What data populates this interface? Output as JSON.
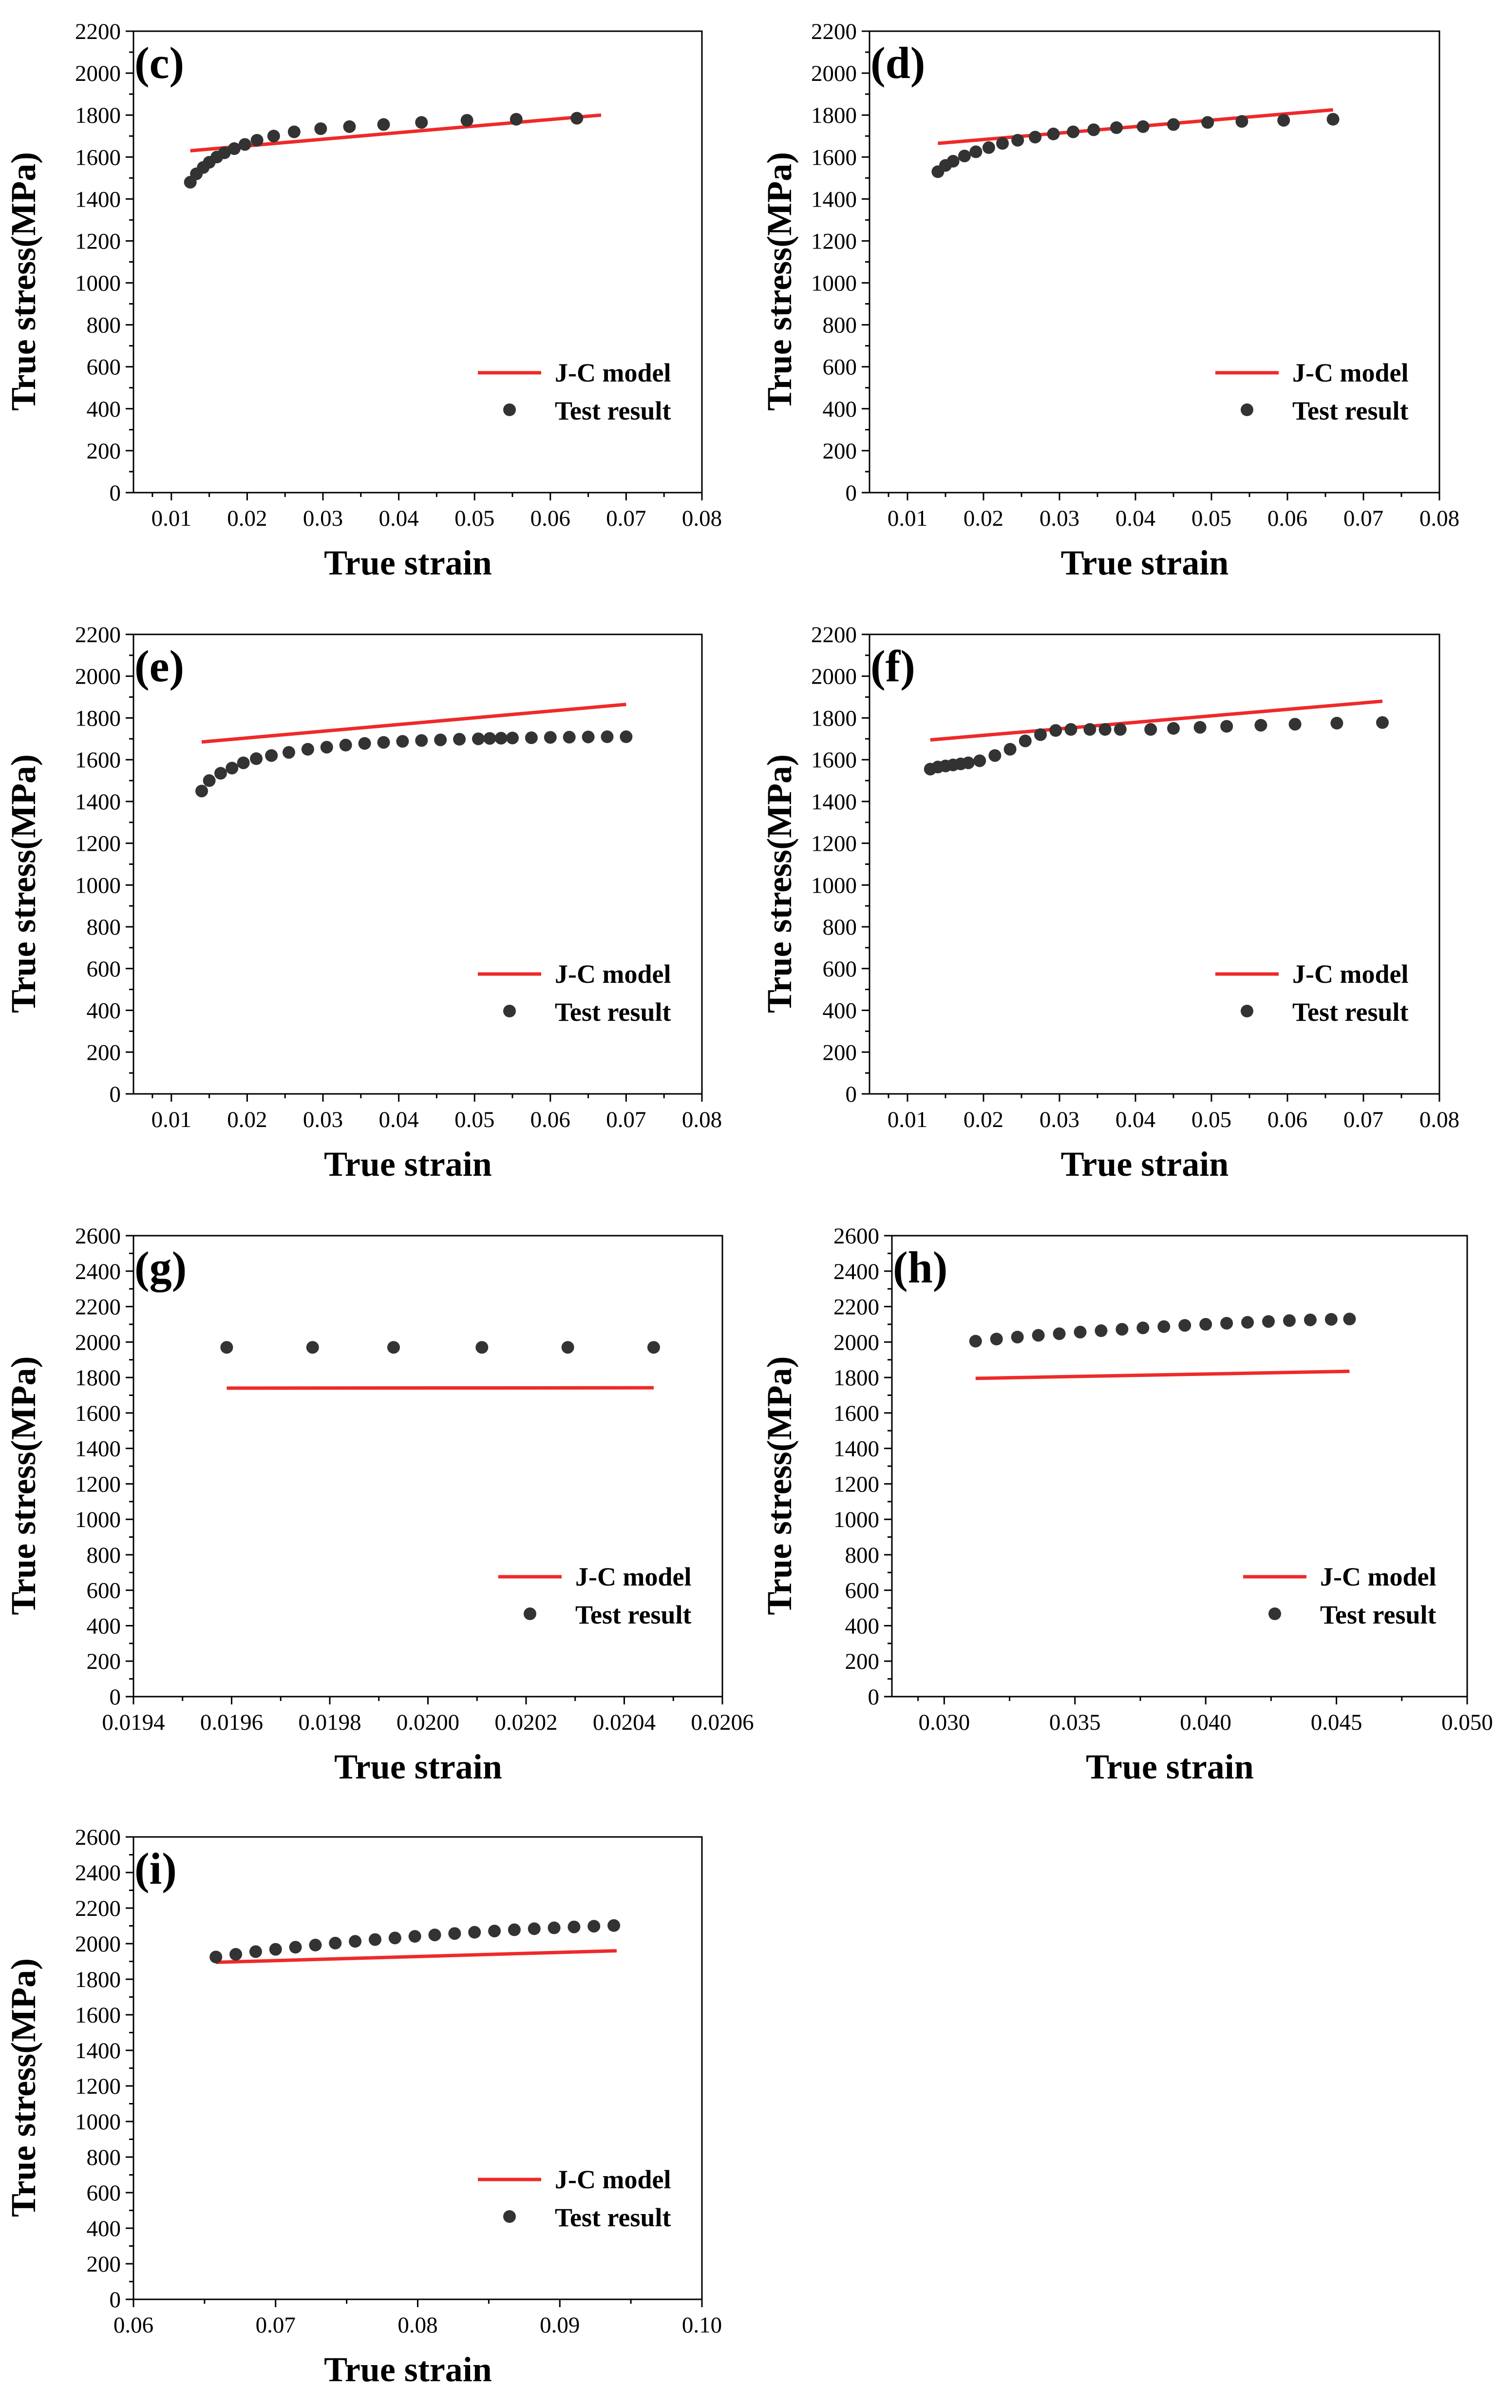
{
  "figure": {
    "legend_labels": {
      "model": "J-C model",
      "test": "Test result"
    },
    "colors": {
      "model_line": "#ee2a2a",
      "test_marker": "#333333",
      "axis": "#000000"
    }
  },
  "chart_data": [
    {
      "type": "line",
      "panel": "(c)",
      "xlabel": "True strain",
      "ylabel": "True stress(MPa)",
      "xlim": [
        0.005,
        0.08
      ],
      "ylim": [
        0,
        2200
      ],
      "x_ticks": [
        "0.01",
        "0.02",
        "0.03",
        "0.04",
        "0.05",
        "0.06",
        "0.07",
        "0.08"
      ],
      "x_tick_values": [
        0.01,
        0.02,
        0.03,
        0.04,
        0.05,
        0.06,
        0.07,
        0.08
      ],
      "y_ticks": [
        "0",
        "200",
        "400",
        "600",
        "800",
        "1000",
        "1200",
        "1400",
        "1600",
        "1800",
        "2000",
        "2200"
      ],
      "y_tick_values": [
        0,
        200,
        400,
        600,
        800,
        1000,
        1200,
        1400,
        1600,
        1800,
        2000,
        2200
      ],
      "legend_position": "lower-right",
      "series": [
        {
          "name": "J-C model",
          "kind": "line",
          "x": [
            0.0125,
            0.0667
          ],
          "y": [
            1630,
            1800
          ]
        },
        {
          "name": "Test result",
          "kind": "scatter",
          "x": [
            0.0125,
            0.0133,
            0.0142,
            0.015,
            0.016,
            0.017,
            0.0183,
            0.0197,
            0.0213,
            0.0235,
            0.0262,
            0.0297,
            0.0335,
            0.038,
            0.043,
            0.049,
            0.0555,
            0.0635
          ],
          "y": [
            1480,
            1520,
            1550,
            1575,
            1600,
            1620,
            1640,
            1660,
            1680,
            1700,
            1720,
            1735,
            1745,
            1755,
            1765,
            1775,
            1780,
            1785
          ]
        }
      ]
    },
    {
      "type": "line",
      "panel": "(d)",
      "xlabel": "True strain",
      "ylabel": "True stress(MPa)",
      "xlim": [
        0.005,
        0.08
      ],
      "ylim": [
        0,
        2200
      ],
      "x_ticks": [
        "0.01",
        "0.02",
        "0.03",
        "0.04",
        "0.05",
        "0.06",
        "0.07",
        "0.08"
      ],
      "x_tick_values": [
        0.01,
        0.02,
        0.03,
        0.04,
        0.05,
        0.06,
        0.07,
        0.08
      ],
      "y_ticks": [
        "0",
        "200",
        "400",
        "600",
        "800",
        "1000",
        "1200",
        "1400",
        "1600",
        "1800",
        "2000",
        "2200"
      ],
      "y_tick_values": [
        0,
        200,
        400,
        600,
        800,
        1000,
        1200,
        1400,
        1600,
        1800,
        2000,
        2200
      ],
      "legend_position": "lower-right",
      "series": [
        {
          "name": "J-C model",
          "kind": "line",
          "x": [
            0.014,
            0.066
          ],
          "y": [
            1665,
            1825
          ]
        },
        {
          "name": "Test result",
          "kind": "scatter",
          "x": [
            0.014,
            0.015,
            0.016,
            0.0175,
            0.019,
            0.0207,
            0.0225,
            0.0245,
            0.0268,
            0.0292,
            0.0318,
            0.0345,
            0.0375,
            0.041,
            0.045,
            0.0495,
            0.054,
            0.0595,
            0.066
          ],
          "y": [
            1530,
            1560,
            1580,
            1605,
            1625,
            1645,
            1665,
            1680,
            1695,
            1710,
            1720,
            1730,
            1740,
            1745,
            1755,
            1765,
            1770,
            1775,
            1780
          ]
        }
      ]
    },
    {
      "type": "line",
      "panel": "(e)",
      "xlabel": "True strain",
      "ylabel": "True stress(MPa)",
      "xlim": [
        0.005,
        0.08
      ],
      "ylim": [
        0,
        2200
      ],
      "x_ticks": [
        "0.01",
        "0.02",
        "0.03",
        "0.04",
        "0.05",
        "0.06",
        "0.07",
        "0.08"
      ],
      "x_tick_values": [
        0.01,
        0.02,
        0.03,
        0.04,
        0.05,
        0.06,
        0.07,
        0.08
      ],
      "y_ticks": [
        "0",
        "200",
        "400",
        "600",
        "800",
        "1000",
        "1200",
        "1400",
        "1600",
        "1800",
        "2000",
        "2200"
      ],
      "y_tick_values": [
        0,
        200,
        400,
        600,
        800,
        1000,
        1200,
        1400,
        1600,
        1800,
        2000,
        2200
      ],
      "legend_position": "lower-right",
      "series": [
        {
          "name": "J-C model",
          "kind": "line",
          "x": [
            0.014,
            0.07
          ],
          "y": [
            1685,
            1865
          ]
        },
        {
          "name": "Test result",
          "kind": "scatter",
          "x": [
            0.014,
            0.015,
            0.0165,
            0.018,
            0.0195,
            0.0212,
            0.0232,
            0.0255,
            0.028,
            0.0305,
            0.033,
            0.0355,
            0.038,
            0.0405,
            0.043,
            0.0455,
            0.048,
            0.0505,
            0.052,
            0.0535,
            0.055,
            0.0575,
            0.06,
            0.0625,
            0.065,
            0.0675,
            0.07
          ],
          "y": [
            1450,
            1500,
            1535,
            1560,
            1585,
            1605,
            1620,
            1635,
            1650,
            1660,
            1670,
            1678,
            1683,
            1688,
            1692,
            1695,
            1698,
            1700,
            1702,
            1703,
            1704,
            1705,
            1707,
            1708,
            1709,
            1710,
            1710
          ]
        }
      ]
    },
    {
      "type": "line",
      "panel": "(f)",
      "xlabel": "True strain",
      "ylabel": "True stress(MPa)",
      "xlim": [
        0.005,
        0.08
      ],
      "ylim": [
        0,
        2200
      ],
      "x_ticks": [
        "0.01",
        "0.02",
        "0.03",
        "0.04",
        "0.05",
        "0.06",
        "0.07",
        "0.08"
      ],
      "x_tick_values": [
        0.01,
        0.02,
        0.03,
        0.04,
        0.05,
        0.06,
        0.07,
        0.08
      ],
      "y_ticks": [
        "0",
        "200",
        "400",
        "600",
        "800",
        "1000",
        "1200",
        "1400",
        "1600",
        "1800",
        "2000",
        "2200"
      ],
      "y_tick_values": [
        0,
        200,
        400,
        600,
        800,
        1000,
        1200,
        1400,
        1600,
        1800,
        2000,
        2200
      ],
      "legend_position": "lower-right",
      "series": [
        {
          "name": "J-C model",
          "kind": "line",
          "x": [
            0.013,
            0.0725
          ],
          "y": [
            1695,
            1880
          ]
        },
        {
          "name": "Test result",
          "kind": "scatter",
          "x": [
            0.013,
            0.014,
            0.015,
            0.016,
            0.017,
            0.018,
            0.0195,
            0.0215,
            0.0235,
            0.0255,
            0.0275,
            0.0295,
            0.0315,
            0.034,
            0.036,
            0.038,
            0.042,
            0.045,
            0.0485,
            0.052,
            0.0565,
            0.061,
            0.0665,
            0.0725
          ],
          "y": [
            1555,
            1565,
            1570,
            1575,
            1580,
            1585,
            1595,
            1620,
            1650,
            1690,
            1720,
            1740,
            1745,
            1745,
            1745,
            1745,
            1745,
            1750,
            1755,
            1760,
            1765,
            1770,
            1775,
            1778
          ]
        }
      ]
    },
    {
      "type": "line",
      "panel": "(g)",
      "xlabel": "True strain",
      "ylabel": "True stress(MPa)",
      "xlim": [
        0.0194,
        0.0206
      ],
      "ylim": [
        0,
        2600
      ],
      "x_ticks": [
        "0.0194",
        "0.0196",
        "0.0198",
        "0.0200",
        "0.0202",
        "0.0204",
        "0.0206"
      ],
      "x_tick_values": [
        0.0194,
        0.0196,
        0.0198,
        0.02,
        0.0202,
        0.0204,
        0.0206
      ],
      "y_ticks": [
        "0",
        "200",
        "400",
        "600",
        "800",
        "1000",
        "1200",
        "1400",
        "1600",
        "1800",
        "2000",
        "2200",
        "2400",
        "2600"
      ],
      "y_tick_values": [
        0,
        200,
        400,
        600,
        800,
        1000,
        1200,
        1400,
        1600,
        1800,
        2000,
        2200,
        2400,
        2600
      ],
      "legend_position": "lower-right",
      "series": [
        {
          "name": "J-C model",
          "kind": "line",
          "x": [
            0.01959,
            0.02046
          ],
          "y": [
            1740,
            1742
          ]
        },
        {
          "name": "Test result",
          "kind": "scatter",
          "x": [
            0.01959,
            0.019765,
            0.01993,
            0.02011,
            0.020285,
            0.02046
          ],
          "y": [
            1970,
            1970,
            1970,
            1970,
            1970,
            1970
          ]
        }
      ]
    },
    {
      "type": "line",
      "panel": "(h)",
      "xlabel": "True strain",
      "ylabel": "True stress(MPa)",
      "xlim": [
        0.028,
        0.05
      ],
      "ylim": [
        0,
        2600
      ],
      "x_ticks": [
        "0.030",
        "0.035",
        "0.040",
        "0.045",
        "0.050"
      ],
      "x_tick_values": [
        0.03,
        0.035,
        0.04,
        0.045,
        0.05
      ],
      "y_ticks": [
        "0",
        "200",
        "400",
        "600",
        "800",
        "1000",
        "1200",
        "1400",
        "1600",
        "1800",
        "2000",
        "2200",
        "2400",
        "2600"
      ],
      "y_tick_values": [
        0,
        200,
        400,
        600,
        800,
        1000,
        1200,
        1400,
        1600,
        1800,
        2000,
        2200,
        2400,
        2600
      ],
      "legend_position": "lower-right",
      "series": [
        {
          "name": "J-C model",
          "kind": "line",
          "x": [
            0.0312,
            0.0455
          ],
          "y": [
            1795,
            1835
          ]
        },
        {
          "name": "Test result",
          "kind": "scatter",
          "x": [
            0.0312,
            0.032,
            0.0328,
            0.0336,
            0.0344,
            0.0352,
            0.036,
            0.0368,
            0.0376,
            0.0384,
            0.0392,
            0.04,
            0.0408,
            0.0416,
            0.0424,
            0.0432,
            0.044,
            0.0448,
            0.0455
          ],
          "y": [
            2005,
            2017,
            2028,
            2038,
            2047,
            2056,
            2064,
            2072,
            2080,
            2087,
            2094,
            2100,
            2106,
            2111,
            2116,
            2121,
            2125,
            2128,
            2130
          ]
        }
      ]
    },
    {
      "type": "line",
      "panel": "(i)",
      "xlabel": "True strain",
      "ylabel": "True stress(MPa)",
      "xlim": [
        0.06,
        0.1
      ],
      "ylim": [
        0,
        2600
      ],
      "x_ticks": [
        "0.06",
        "0.07",
        "0.08",
        "0.09",
        "0.10"
      ],
      "x_tick_values": [
        0.06,
        0.07,
        0.08,
        0.09,
        0.1
      ],
      "y_ticks": [
        "0",
        "200",
        "400",
        "600",
        "800",
        "1000",
        "1200",
        "1400",
        "1600",
        "1800",
        "2000",
        "2200",
        "2400",
        "2600"
      ],
      "y_tick_values": [
        0,
        200,
        400,
        600,
        800,
        1000,
        1200,
        1400,
        1600,
        1800,
        2000,
        2200,
        2400,
        2600
      ],
      "legend_position": "lower-right",
      "series": [
        {
          "name": "J-C model",
          "kind": "line",
          "x": [
            0.0658,
            0.094
          ],
          "y": [
            1895,
            1960
          ]
        },
        {
          "name": "Test result",
          "kind": "scatter",
          "x": [
            0.0658,
            0.0672,
            0.0686,
            0.07,
            0.0714,
            0.0728,
            0.0742,
            0.0756,
            0.077,
            0.0784,
            0.0798,
            0.0812,
            0.0826,
            0.084,
            0.0854,
            0.0868,
            0.0882,
            0.0896,
            0.091,
            0.0924,
            0.0938
          ],
          "y": [
            1925,
            1940,
            1955,
            1968,
            1980,
            1992,
            2003,
            2013,
            2023,
            2032,
            2041,
            2049,
            2057,
            2064,
            2071,
            2078,
            2084,
            2089,
            2094,
            2098,
            2102
          ]
        }
      ]
    }
  ]
}
